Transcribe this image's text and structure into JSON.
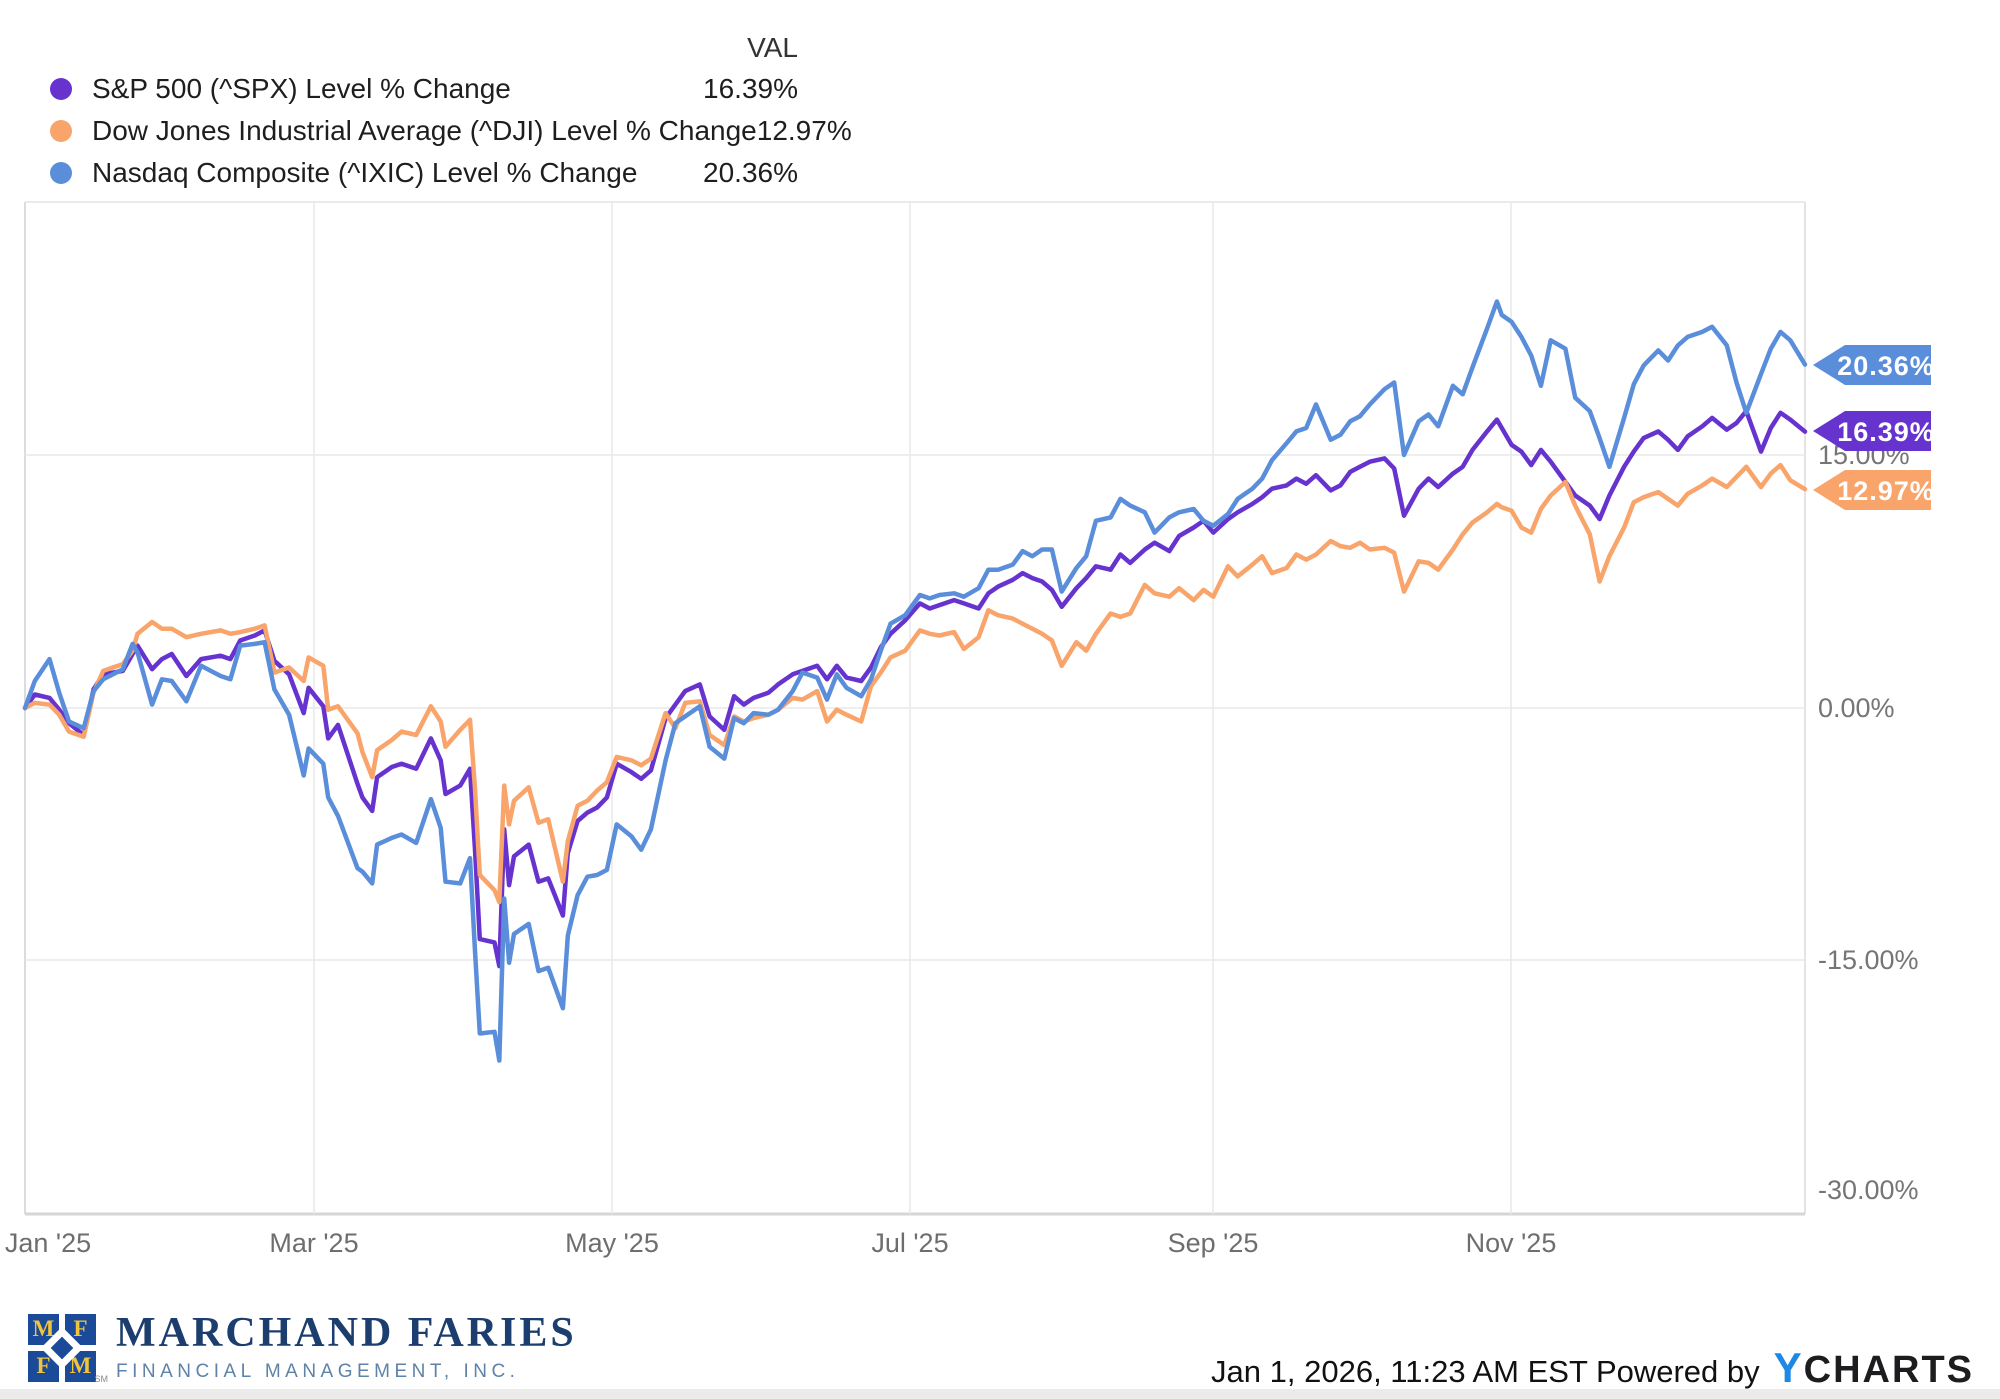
{
  "legend": {
    "header": "VAL"
  },
  "chart_data": {
    "type": "line",
    "title": "",
    "grid": true,
    "legend_position": "top-left",
    "x_axis": {
      "ticks": [
        "Jan '25",
        "Mar '25",
        "May '25",
        "Jul '25",
        "Sep '25",
        "Nov '25"
      ]
    },
    "y_axis": {
      "ticks": [
        "15.00%",
        "0.00%",
        "-15.00%",
        "-30.00%"
      ],
      "tick_values": [
        15,
        0,
        -15,
        -30
      ],
      "ylim": [
        -31,
        31
      ],
      "unit": "%"
    },
    "days": [
      1,
      3,
      6,
      8,
      10,
      13,
      15,
      17,
      21,
      23,
      24,
      27,
      29,
      31,
      34,
      37,
      41,
      43,
      45,
      48,
      50,
      52,
      55,
      58,
      59,
      62,
      63,
      65,
      69,
      70,
      72,
      73,
      76,
      78,
      81,
      84,
      86,
      87,
      90,
      92,
      93,
      94,
      97,
      98,
      99,
      100,
      101,
      104,
      106,
      108,
      111,
      112,
      114,
      116,
      118,
      120,
      122,
      125,
      127,
      129,
      132,
      134,
      136,
      139,
      141,
      144,
      146,
      148,
      150,
      153,
      155,
      158,
      160,
      163,
      165,
      167,
      169,
      172,
      174,
      176,
      178,
      181,
      184,
      186,
      188,
      191,
      193,
      196,
      198,
      200,
      203,
      205,
      207,
      209,
      211,
      213,
      216,
      218,
      220,
      223,
      225,
      227,
      230,
      232,
      235,
      237,
      240,
      242,
      244,
      247,
      249,
      252,
      254,
      256,
      259,
      261,
      263,
      265,
      268,
      270,
      272,
      274,
      276,
      279,
      281,
      283,
      286,
      288,
      290,
      293,
      295,
      297,
      300,
      302,
      303,
      305,
      307,
      309,
      311,
      313,
      316,
      318,
      321,
      323,
      325,
      328,
      330,
      332,
      335,
      337,
      339,
      341,
      344,
      346,
      349,
      351,
      353,
      356,
      358,
      360,
      362,
      365
    ],
    "series": [
      {
        "id": "spx",
        "label": "S&P 500 (^SPX) Level % Change",
        "value": "16.39%",
        "color": "#6733CF",
        "values": [
          0,
          0.8,
          0.6,
          -0.1,
          -0.9,
          -1.6,
          1.1,
          2.0,
          2.2,
          3.2,
          3.7,
          2.3,
          2.9,
          3.2,
          1.9,
          2.9,
          3.1,
          2.9,
          4.0,
          4.3,
          4.6,
          2.8,
          2.0,
          -0.3,
          1.2,
          0.1,
          -1.8,
          -1.0,
          -4.5,
          -5.3,
          -6.1,
          -4.1,
          -3.5,
          -3.3,
          -3.6,
          -1.8,
          -3.1,
          -5.1,
          -4.6,
          -3.6,
          -8.3,
          -13.7,
          -13.9,
          -15.3,
          -7.2,
          -10.5,
          -8.8,
          -8.1,
          -10.3,
          -10.1,
          -12.3,
          -8.6,
          -6.7,
          -6.2,
          -5.9,
          -5.3,
          -3.3,
          -3.8,
          -4.2,
          -3.7,
          -0.6,
          0.2,
          1.0,
          1.4,
          -0.5,
          -1.3,
          0.7,
          0.2,
          0.6,
          0.9,
          1.4,
          2.0,
          2.2,
          2.5,
          1.7,
          2.5,
          1.8,
          1.6,
          2.4,
          3.6,
          4.4,
          5.2,
          6.2,
          5.9,
          6.1,
          6.4,
          6.2,
          5.9,
          6.8,
          7.2,
          7.6,
          8.0,
          7.7,
          7.5,
          7.0,
          6.0,
          7.1,
          7.7,
          8.4,
          8.2,
          9.1,
          8.6,
          9.4,
          9.8,
          9.3,
          10.2,
          10.7,
          11.1,
          10.4,
          11.2,
          11.6,
          12.1,
          12.5,
          13.0,
          13.2,
          13.6,
          13.3,
          13.8,
          12.9,
          13.2,
          14.0,
          14.3,
          14.6,
          14.8,
          14.2,
          11.4,
          13.0,
          13.6,
          13.1,
          13.9,
          14.3,
          15.3,
          16.4,
          17.1,
          16.6,
          15.6,
          15.2,
          14.4,
          15.3,
          14.6,
          13.4,
          12.6,
          12.0,
          11.2,
          12.6,
          14.3,
          15.2,
          16.0,
          16.4,
          15.9,
          15.3,
          16.1,
          16.7,
          17.2,
          16.5,
          16.9,
          17.6,
          15.2,
          16.6,
          17.5,
          17.1,
          16.39
        ]
      },
      {
        "id": "dji",
        "label": "Dow Jones Industrial Average (^DJI) Level % Change",
        "value": "12.97%",
        "color": "#F8A46B",
        "values": [
          0,
          0.3,
          0.2,
          -0.4,
          -1.4,
          -1.7,
          0.9,
          2.2,
          2.6,
          3.4,
          4.4,
          5.1,
          4.7,
          4.7,
          4.2,
          4.4,
          4.6,
          4.4,
          4.5,
          4.7,
          4.9,
          2.1,
          2.4,
          1.6,
          3.0,
          2.5,
          -0.1,
          0.1,
          -1.5,
          -2.6,
          -4.1,
          -2.5,
          -1.9,
          -1.4,
          -1.6,
          0.1,
          -0.8,
          -2.3,
          -1.3,
          -0.7,
          -4.7,
          -9.9,
          -10.8,
          -11.5,
          -4.6,
          -6.9,
          -5.5,
          -4.7,
          -6.8,
          -6.6,
          -10.3,
          -7.9,
          -5.8,
          -5.5,
          -4.9,
          -4.4,
          -2.9,
          -3.1,
          -3.4,
          -3.0,
          -0.3,
          -1.2,
          0.3,
          0.4,
          -1.6,
          -2.2,
          -0.5,
          -0.8,
          -0.6,
          -0.4,
          -0.1,
          0.6,
          0.5,
          1.0,
          -0.8,
          -0.1,
          -0.4,
          -0.8,
          1.3,
          2.1,
          3.0,
          3.4,
          4.6,
          4.4,
          4.3,
          4.5,
          3.5,
          4.2,
          5.8,
          5.5,
          5.3,
          5.0,
          4.7,
          4.4,
          4.0,
          2.5,
          3.9,
          3.4,
          4.4,
          5.6,
          5.4,
          5.6,
          7.3,
          6.8,
          6.6,
          7.1,
          6.4,
          7.0,
          6.6,
          8.4,
          7.8,
          8.5,
          9.0,
          8.0,
          8.3,
          9.1,
          8.8,
          9.1,
          9.9,
          9.6,
          9.5,
          9.8,
          9.4,
          9.5,
          9.2,
          6.9,
          8.7,
          8.6,
          8.2,
          9.4,
          10.3,
          11.0,
          11.6,
          12.1,
          11.9,
          11.7,
          10.7,
          10.4,
          11.8,
          12.6,
          13.4,
          12.0,
          10.3,
          7.5,
          9.0,
          10.7,
          12.2,
          12.5,
          12.8,
          12.4,
          12.0,
          12.7,
          13.2,
          13.6,
          13.1,
          13.7,
          14.3,
          13.1,
          13.9,
          14.4,
          13.5,
          12.97
        ]
      },
      {
        "id": "ixic",
        "label": "Nasdaq Composite (^IXIC) Level % Change",
        "value": "20.36%",
        "color": "#5A8EDB",
        "values": [
          0,
          1.6,
          2.9,
          0.9,
          -0.8,
          -1.2,
          1.0,
          1.7,
          2.3,
          3.8,
          3.3,
          0.2,
          1.7,
          1.6,
          0.4,
          2.5,
          1.9,
          1.7,
          3.7,
          3.8,
          3.9,
          1.1,
          -0.4,
          -4.0,
          -2.4,
          -3.3,
          -5.3,
          -6.4,
          -9.5,
          -9.7,
          -10.4,
          -8.1,
          -7.7,
          -7.5,
          -8.0,
          -5.4,
          -7.1,
          -10.3,
          -10.4,
          -8.9,
          -14.3,
          -19.3,
          -19.2,
          -20.9,
          -11.3,
          -15.1,
          -13.4,
          -12.8,
          -15.6,
          -15.4,
          -17.8,
          -13.5,
          -11.1,
          -10.0,
          -9.9,
          -9.6,
          -6.9,
          -7.6,
          -8.4,
          -7.2,
          -3.1,
          -0.9,
          -0.5,
          0.1,
          -2.3,
          -3.0,
          -0.6,
          -0.9,
          -0.3,
          -0.4,
          -0.1,
          1.0,
          2.1,
          1.8,
          0.5,
          2.0,
          1.2,
          0.7,
          1.7,
          3.4,
          5.0,
          5.5,
          6.7,
          6.5,
          6.7,
          6.8,
          6.6,
          7.1,
          8.2,
          8.2,
          8.5,
          9.3,
          9.0,
          9.4,
          9.4,
          6.9,
          8.3,
          9.0,
          11.1,
          11.3,
          12.4,
          12.0,
          11.6,
          10.4,
          11.3,
          11.6,
          11.8,
          11.1,
          10.8,
          11.5,
          12.4,
          13.0,
          13.6,
          14.7,
          15.7,
          16.4,
          16.6,
          18.0,
          15.9,
          16.2,
          17.0,
          17.3,
          18.0,
          18.9,
          19.3,
          15.0,
          17.0,
          17.4,
          16.7,
          19.1,
          18.6,
          20.2,
          22.5,
          24.1,
          23.3,
          22.9,
          22.0,
          20.9,
          19.1,
          21.8,
          21.3,
          18.4,
          17.6,
          16.0,
          14.3,
          17.2,
          19.2,
          20.3,
          21.2,
          20.6,
          21.5,
          22.0,
          22.3,
          22.6,
          21.5,
          19.3,
          17.5,
          19.8,
          21.3,
          22.3,
          21.8,
          20.36
        ]
      }
    ]
  },
  "footer": {
    "logo_line1": "MARCHAND FARIES",
    "logo_line2": "FINANCIAL MANAGEMENT, INC.",
    "logo_mark_letters": [
      "M",
      "F",
      "F",
      "M"
    ],
    "trademark": "SM",
    "timestamp": "Jan 1, 2026, 11:23 AM EST",
    "powered_by": "Powered by",
    "brand_y": "Y",
    "brand_rest": "CHARTS"
  }
}
